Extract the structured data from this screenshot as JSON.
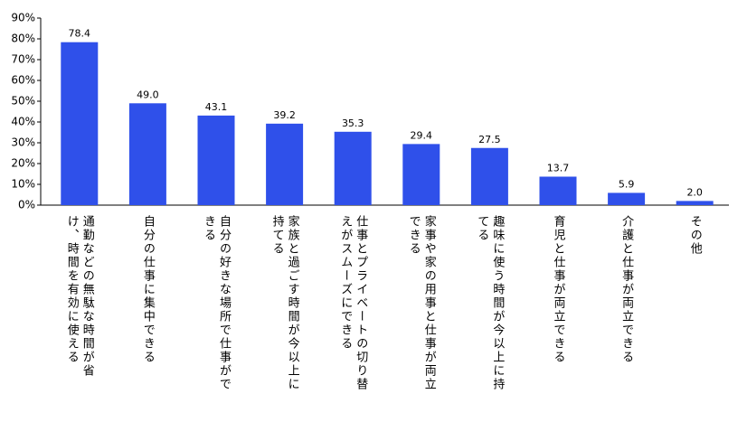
{
  "chart_data": {
    "type": "bar",
    "categories": [
      "通勤などの無駄な時間が省け、時間を有効に使える",
      "自分の仕事に集中できる",
      "自分の好きな場所で仕事ができる",
      "家族と過ごす時間が今以上に持てる",
      "仕事とプライベートの切り替えがスムーズにできる",
      "家事や家の用事と仕事が両立できる",
      "趣味に使う時間が今以上に持てる",
      "育児と仕事が両立できる",
      "介護と仕事が両立できる",
      "その他"
    ],
    "values": [
      78.4,
      49.0,
      43.1,
      39.2,
      35.3,
      29.4,
      27.5,
      13.7,
      5.9,
      2.0
    ],
    "value_labels": [
      "78.4",
      "49.0",
      "43.1",
      "39.2",
      "35.3",
      "29.4",
      "27.5",
      "13.7",
      "5.9",
      "2.0"
    ],
    "color": "#2f50ea",
    "ylim": [
      0,
      90
    ],
    "yticks": [
      {
        "value": 0,
        "label": "0%"
      },
      {
        "value": 10,
        "label": "10%"
      },
      {
        "value": 20,
        "label": "20%"
      },
      {
        "value": 30,
        "label": "30%"
      },
      {
        "value": 40,
        "label": "40%"
      },
      {
        "value": 50,
        "label": "50%"
      },
      {
        "value": 60,
        "label": "60%"
      },
      {
        "value": 70,
        "label": "70%"
      },
      {
        "value": 80,
        "label": "80%"
      },
      {
        "value": 90,
        "label": "90%"
      }
    ],
    "grid": false
  }
}
